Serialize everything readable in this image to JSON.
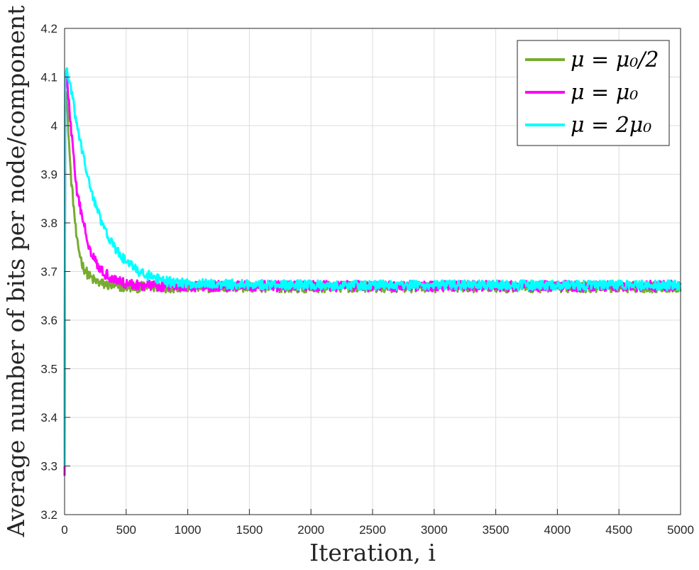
{
  "chart_data": {
    "type": "line",
    "title": "",
    "xlabel": "Iteration, i",
    "ylabel": "Average number of bits per node/component",
    "xlim": [
      0,
      5000
    ],
    "ylim": [
      3.2,
      4.2
    ],
    "xticks": [
      "0",
      "500",
      "1000",
      "1500",
      "2000",
      "2500",
      "3000",
      "3500",
      "4000",
      "4500",
      "5000"
    ],
    "yticks": [
      "3.2",
      "3.3",
      "3.4",
      "3.5",
      "3.6",
      "3.7",
      "3.8",
      "3.9",
      "4",
      "4.1",
      "4.2"
    ],
    "grid": true,
    "legend_position": "top-right",
    "series": [
      {
        "name": "μ = μ₀/2",
        "color": "#77ac30",
        "start": 3.29,
        "peak": 4.08,
        "steady": 3.668,
        "decay_iterations": 70,
        "noise": 0.011,
        "x": [
          0,
          5,
          10,
          20,
          50,
          100,
          150,
          200,
          250,
          300,
          400,
          500,
          700,
          1000,
          2000,
          3000,
          4000,
          5000
        ],
        "y": [
          3.29,
          4.05,
          4.08,
          4.04,
          3.9,
          3.76,
          3.71,
          3.69,
          3.68,
          3.675,
          3.67,
          3.668,
          3.668,
          3.668,
          3.668,
          3.668,
          3.668,
          3.668
        ]
      },
      {
        "name": "μ = μ₀",
        "color": "#ff00ff",
        "start": 3.28,
        "peak": 4.11,
        "steady": 3.67,
        "decay_iterations": 140,
        "noise": 0.011,
        "x": [
          0,
          5,
          15,
          30,
          100,
          200,
          300,
          400,
          500,
          600,
          700,
          800,
          1000,
          2000,
          3000,
          4000,
          5000
        ],
        "y": [
          3.28,
          4.08,
          4.11,
          4.06,
          3.86,
          3.75,
          3.7,
          3.685,
          3.675,
          3.672,
          3.671,
          3.67,
          3.67,
          3.67,
          3.67,
          3.67,
          3.67
        ]
      },
      {
        "name": "μ = 2μ₀",
        "color": "#00ffff",
        "start": 3.3,
        "peak": 4.11,
        "steady": 3.672,
        "decay_iterations": 230,
        "noise": 0.01,
        "x": [
          0,
          5,
          20,
          50,
          100,
          200,
          300,
          400,
          500,
          600,
          700,
          800,
          1000,
          2000,
          3000,
          4000,
          5000
        ],
        "y": [
          3.3,
          4.1,
          4.11,
          4.08,
          4.0,
          3.88,
          3.8,
          3.75,
          3.72,
          3.7,
          3.69,
          3.68,
          3.675,
          3.672,
          3.672,
          3.672,
          3.672
        ]
      }
    ]
  }
}
